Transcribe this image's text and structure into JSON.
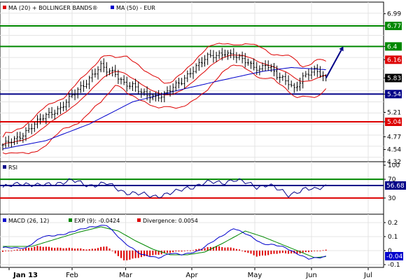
{
  "chart_data": {
    "type": "stock-technical",
    "x_labels": [
      "Jan 13",
      "Feb",
      "Mar",
      "Apr",
      "May",
      "Jun",
      "Jul"
    ],
    "x_label_positions": [
      2,
      22,
      39,
      60,
      80,
      98,
      116
    ],
    "n_bars": 132,
    "price_panel": {
      "legend": [
        {
          "label": "MA (20) + BOLLINGER BANDS®",
          "color": "#dd0000"
        },
        {
          "label": "MA (50) - EUR",
          "color": "#0000cc"
        }
      ],
      "y_ticks": [
        "6.99",
        "6.77",
        "6.4",
        "6.16",
        "5.83",
        "5.54",
        "5.21",
        "5.04",
        "4.77",
        "4.54",
        "4.32"
      ],
      "ylim": [
        4.32,
        7.2
      ],
      "levels": [
        {
          "value": 6.77,
          "label": "6.77",
          "color": "#008800"
        },
        {
          "value": 6.4,
          "label": "6.4",
          "color": "#008800"
        },
        {
          "value": 5.54,
          "label": "5.54",
          "color": "#000088"
        },
        {
          "value": 5.04,
          "label": "5.04",
          "color": "#dd0000"
        }
      ],
      "value_boxes": [
        {
          "value": 6.16,
          "label": "6.16",
          "bg": "#dd0000",
          "fg": "#ffffff"
        },
        {
          "value": 5.83,
          "label": "5.83",
          "bg": "#000000",
          "fg": "#ffffff"
        }
      ],
      "close_anchors": [
        [
          0,
          4.6
        ],
        [
          5,
          4.75
        ],
        [
          10,
          4.95
        ],
        [
          15,
          5.15
        ],
        [
          20,
          5.3
        ],
        [
          25,
          5.55
        ],
        [
          28,
          5.7
        ],
        [
          31,
          5.9
        ],
        [
          34,
          6.05
        ],
        [
          36,
          5.95
        ],
        [
          39,
          5.9
        ],
        [
          42,
          5.75
        ],
        [
          45,
          5.7
        ],
        [
          48,
          5.55
        ],
        [
          50,
          5.5
        ],
        [
          53,
          5.5
        ],
        [
          56,
          5.55
        ],
        [
          59,
          5.65
        ],
        [
          62,
          5.75
        ],
        [
          65,
          5.95
        ],
        [
          68,
          6.1
        ],
        [
          71,
          6.2
        ],
        [
          74,
          6.22
        ],
        [
          77,
          6.3
        ],
        [
          80,
          6.25
        ],
        [
          83,
          6.15
        ],
        [
          86,
          6.05
        ],
        [
          89,
          6.0
        ],
        [
          91,
          6.1
        ],
        [
          93,
          6.0
        ],
        [
          95,
          5.85
        ],
        [
          97,
          5.8
        ],
        [
          99,
          5.75
        ],
        [
          101,
          5.65
        ],
        [
          104,
          5.85
        ],
        [
          106,
          5.9
        ],
        [
          108,
          5.95
        ],
        [
          110,
          5.9
        ],
        [
          112,
          5.83
        ]
      ],
      "ma50_anchors": [
        [
          0,
          4.55
        ],
        [
          15,
          4.7
        ],
        [
          30,
          5.0
        ],
        [
          45,
          5.4
        ],
        [
          60,
          5.6
        ],
        [
          75,
          5.78
        ],
        [
          90,
          5.95
        ],
        [
          100,
          6.02
        ],
        [
          112,
          5.98
        ]
      ],
      "forecast_arrow": {
        "from": [
          112,
          5.83
        ],
        "to": [
          118,
          6.4
        ]
      }
    },
    "rsi_panel": {
      "label": "RSI",
      "y_ticks": [
        "100",
        "70",
        "30"
      ],
      "ylim": [
        0,
        100
      ],
      "levels": [
        {
          "value": 70,
          "color": "#008800"
        },
        {
          "value": 56.68,
          "color": "#000088"
        },
        {
          "value": 30,
          "color": "#dd0000"
        }
      ],
      "value_box": {
        "value": 56.68,
        "label": "56.68",
        "bg": "#000088",
        "fg": "#ffffff"
      },
      "anchors": [
        [
          0,
          50
        ],
        [
          6,
          64
        ],
        [
          12,
          55
        ],
        [
          18,
          62
        ],
        [
          24,
          66
        ],
        [
          30,
          58
        ],
        [
          36,
          60
        ],
        [
          42,
          44
        ],
        [
          48,
          37
        ],
        [
          52,
          34
        ],
        [
          56,
          38
        ],
        [
          60,
          42
        ],
        [
          64,
          52
        ],
        [
          70,
          62
        ],
        [
          76,
          63
        ],
        [
          80,
          70
        ],
        [
          84,
          62
        ],
        [
          88,
          54
        ],
        [
          92,
          60
        ],
        [
          96,
          45
        ],
        [
          99,
          36
        ],
        [
          102,
          45
        ],
        [
          105,
          50
        ],
        [
          108,
          46
        ],
        [
          112,
          56.68
        ]
      ]
    },
    "macd_panel": {
      "legend": [
        {
          "label": "MACD (26, 12)",
          "color": "#0000cc"
        },
        {
          "label": "EXP (9): -0.0424",
          "color": "#008800"
        },
        {
          "label": "Divergence: 0.0054",
          "color": "#dd0000"
        }
      ],
      "y_ticks": [
        "0.2",
        "0.1",
        "0",
        "-0.1"
      ],
      "ylim": [
        -0.12,
        0.24
      ],
      "value_box": {
        "value": -0.04,
        "label": "-0.04",
        "bg": "#0000cc",
        "fg": "#ffffff"
      },
      "macd_anchors": [
        [
          0,
          0.02
        ],
        [
          8,
          0.02
        ],
        [
          14,
          0.1
        ],
        [
          22,
          0.12
        ],
        [
          30,
          0.17
        ],
        [
          36,
          0.18
        ],
        [
          42,
          0.06
        ],
        [
          48,
          -0.03
        ],
        [
          54,
          -0.05
        ],
        [
          58,
          -0.02
        ],
        [
          62,
          -0.03
        ],
        [
          68,
          0.0
        ],
        [
          74,
          0.08
        ],
        [
          80,
          0.16
        ],
        [
          86,
          0.1
        ],
        [
          90,
          0.05
        ],
        [
          94,
          0.04
        ],
        [
          98,
          0.02
        ],
        [
          102,
          -0.02
        ],
        [
          106,
          -0.06
        ],
        [
          110,
          -0.05
        ],
        [
          112,
          -0.04
        ]
      ],
      "signal_anchors": [
        [
          0,
          0.03
        ],
        [
          10,
          0.03
        ],
        [
          18,
          0.08
        ],
        [
          26,
          0.13
        ],
        [
          34,
          0.17
        ],
        [
          40,
          0.14
        ],
        [
          46,
          0.07
        ],
        [
          52,
          0.01
        ],
        [
          58,
          -0.03
        ],
        [
          64,
          -0.03
        ],
        [
          70,
          -0.01
        ],
        [
          76,
          0.05
        ],
        [
          84,
          0.14
        ],
        [
          90,
          0.1
        ],
        [
          96,
          0.05
        ],
        [
          102,
          0.0
        ],
        [
          108,
          -0.05
        ],
        [
          112,
          -0.0424
        ]
      ],
      "divergence_anchors": [
        [
          0,
          -0.01
        ],
        [
          12,
          0.03
        ],
        [
          20,
          0.02
        ],
        [
          30,
          0.01
        ],
        [
          36,
          0.03
        ],
        [
          42,
          -0.07
        ],
        [
          50,
          -0.04
        ],
        [
          56,
          -0.02
        ],
        [
          64,
          0.0
        ],
        [
          74,
          0.03
        ],
        [
          80,
          0.02
        ],
        [
          88,
          -0.04
        ],
        [
          96,
          -0.02
        ],
        [
          102,
          -0.02
        ],
        [
          106,
          -0.01
        ],
        [
          112,
          0.0054
        ]
      ]
    }
  }
}
